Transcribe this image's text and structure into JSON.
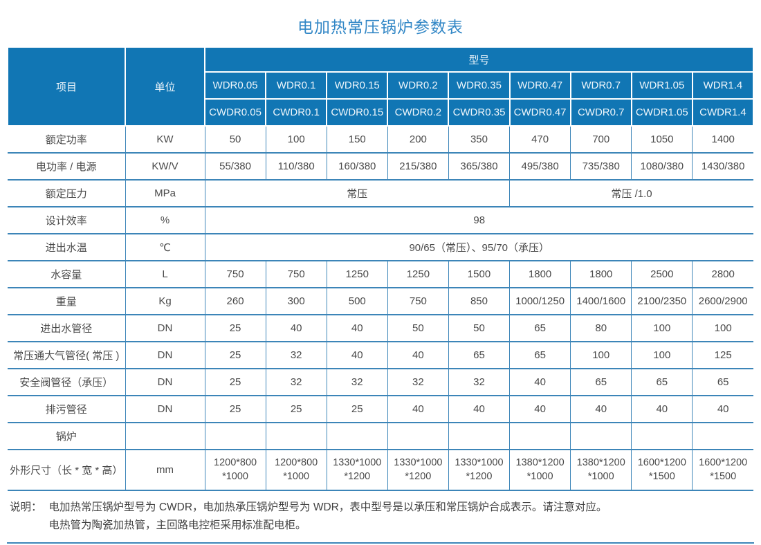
{
  "page": {
    "title": "电加热常压锅炉参数表"
  },
  "table": {
    "header": {
      "item_label": "项目",
      "unit_label": "单位",
      "model_label": "型号",
      "models_wdr": [
        "WDR0.05",
        "WDR0.1",
        "WDR0.15",
        "WDR0.2",
        "WDR0.35",
        "WDR0.47",
        "WDR0.7",
        "WDR1.05",
        "WDR1.4"
      ],
      "models_cwdr": [
        "CWDR0.05",
        "CWDR0.1",
        "CWDR0.15",
        "CWDR0.2",
        "CWDR0.35",
        "CWDR0.47",
        "CWDR0.7",
        "CWDR1.05",
        "CWDR1.4"
      ]
    },
    "rows": [
      {
        "item": "额定功率",
        "unit": "KW",
        "cells": [
          "50",
          "100",
          "150",
          "200",
          "350",
          "470",
          "700",
          "1050",
          "1400"
        ]
      },
      {
        "item": "电功率 / 电源",
        "unit": "KW/V",
        "cells": [
          "55/380",
          "110/380",
          "160/380",
          "215/380",
          "365/380",
          "495/380",
          "735/380",
          "1080/380",
          "1430/380"
        ]
      },
      {
        "item": "额定压力",
        "unit": "MPa",
        "cells": [
          {
            "text": "常压",
            "span": 5
          },
          {
            "text": "常压 /1.0",
            "span": 4
          }
        ]
      },
      {
        "item": "设计效率",
        "unit": "%",
        "cells": [
          {
            "text": "98",
            "span": 9
          }
        ]
      },
      {
        "item": "进出水温",
        "unit": "℃",
        "cells": [
          {
            "text": "90/65（常压）、95/70（承压）",
            "span": 9
          }
        ]
      },
      {
        "item": "水容量",
        "unit": "L",
        "cells": [
          "750",
          "750",
          "1250",
          "1250",
          "1500",
          "1800",
          "1800",
          "2500",
          "2800"
        ]
      },
      {
        "item": "重量",
        "unit": "Kg",
        "cells": [
          "260",
          "300",
          "500",
          "750",
          "850",
          "1000/1250",
          "1400/1600",
          "2100/2350",
          "2600/2900"
        ]
      },
      {
        "item": "进出水管径",
        "unit": "DN",
        "cells": [
          "25",
          "40",
          "40",
          "50",
          "50",
          "65",
          "80",
          "100",
          "100"
        ]
      },
      {
        "item": "常压通大气管径( 常压 )",
        "unit": "DN",
        "cells": [
          "25",
          "32",
          "40",
          "40",
          "65",
          "65",
          "100",
          "100",
          "125"
        ]
      },
      {
        "item": "安全阀管径（承压）",
        "unit": "DN",
        "cells": [
          "25",
          "32",
          "32",
          "32",
          "32",
          "40",
          "65",
          "65",
          "65"
        ]
      },
      {
        "item": "排污管径",
        "unit": "DN",
        "cells": [
          "25",
          "25",
          "25",
          "40",
          "40",
          "40",
          "40",
          "40",
          "40"
        ]
      },
      {
        "item": "锅炉",
        "unit": "",
        "cells": [
          "",
          "",
          "",
          "",
          "",
          "",
          "",
          "",
          ""
        ]
      },
      {
        "item": "外形尺寸（长 * 宽 * 高）",
        "unit": "mm",
        "cells": [
          "1200*800\n*1000",
          "1200*800\n*1000",
          "1330*1000\n*1200",
          "1330*1000\n*1200",
          "1330*1000\n*1200",
          "1380*1200\n*1000",
          "1380*1200\n*1000",
          "1600*1200\n*1500",
          "1600*1200\n*1500"
        ]
      }
    ]
  },
  "notes": {
    "label": "说明：",
    "line1": "电加热常压锅炉型号为 CWDR，电加热承压锅炉型号为 WDR，表中型号是以承压和常压锅炉合成表示。请注意对应。",
    "line2": "电热管为陶瓷加热管，主回路电控柜采用标准配电柜。"
  },
  "colors": {
    "header_bg": "#1176b4",
    "border_blue": "#3c85b8",
    "title_blue": "#3287c6",
    "body_text": "#4a4a4a"
  }
}
